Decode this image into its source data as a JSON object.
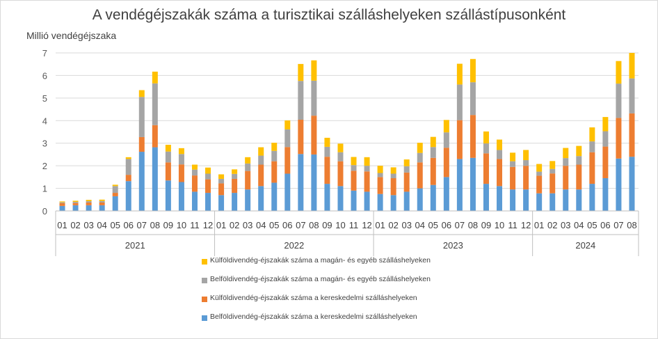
{
  "chart_data": {
    "type": "bar",
    "stacked": true,
    "title": "A vendégéjszakák száma a turisztikai szálláshelyeken szállástípusonként",
    "ylabel": "Millió vendégéjszaka",
    "ylim": [
      0,
      7
    ],
    "yticks": [
      0,
      1,
      2,
      3,
      4,
      5,
      6,
      7
    ],
    "grid": true,
    "legend_position": "bottom",
    "categories": [
      "01",
      "02",
      "03",
      "04",
      "05",
      "06",
      "07",
      "08",
      "09",
      "10",
      "11",
      "12",
      "01",
      "02",
      "03",
      "04",
      "05",
      "06",
      "07",
      "08",
      "09",
      "10",
      "11",
      "12",
      "01",
      "02",
      "03",
      "04",
      "05",
      "06",
      "07",
      "08",
      "09",
      "10",
      "11",
      "12",
      "01",
      "02",
      "03",
      "04",
      "05",
      "06",
      "07",
      "08"
    ],
    "years": [
      {
        "label": "2021",
        "count": 12
      },
      {
        "label": "2022",
        "count": 12
      },
      {
        "label": "2023",
        "count": 12
      },
      {
        "label": "2024",
        "count": 8
      }
    ],
    "series": [
      {
        "name": "Belföldivendég-éjszakák száma a kereskedelmi szálláshelyeken",
        "color": "#5b9bd5",
        "values": [
          0.22,
          0.25,
          0.25,
          0.25,
          0.65,
          1.32,
          2.62,
          2.82,
          1.35,
          1.28,
          0.85,
          0.8,
          0.7,
          0.8,
          0.95,
          1.1,
          1.25,
          1.65,
          2.52,
          2.5,
          1.2,
          1.1,
          0.9,
          0.85,
          0.75,
          0.7,
          0.85,
          1.0,
          1.15,
          1.5,
          2.3,
          2.35,
          1.2,
          1.1,
          0.95,
          0.95,
          0.78,
          0.78,
          0.95,
          0.95,
          1.2,
          1.45,
          2.32,
          2.4
        ]
      },
      {
        "name": "Külföldivendég-éjszakák száma a kereskedelmi szálláshelyeken",
        "color": "#ed7d31",
        "values": [
          0.12,
          0.1,
          0.12,
          0.12,
          0.15,
          0.28,
          0.65,
          0.98,
          0.8,
          0.78,
          0.72,
          0.6,
          0.52,
          0.62,
          0.82,
          0.95,
          0.95,
          1.18,
          1.52,
          1.72,
          1.2,
          1.1,
          0.88,
          0.9,
          0.75,
          0.75,
          0.85,
          1.15,
          1.2,
          1.3,
          1.72,
          1.9,
          1.35,
          1.2,
          1.0,
          1.05,
          0.78,
          0.88,
          1.05,
          1.1,
          1.4,
          1.4,
          1.8,
          1.92
        ]
      },
      {
        "name": "Belföldivendég-éjszakák száma a magán- és egyéb szálláshelyeken",
        "color": "#a5a5a5",
        "values": [
          0.04,
          0.05,
          0.06,
          0.07,
          0.3,
          0.7,
          1.78,
          1.85,
          0.48,
          0.46,
          0.26,
          0.25,
          0.2,
          0.22,
          0.33,
          0.4,
          0.46,
          0.78,
          1.72,
          1.55,
          0.44,
          0.4,
          0.25,
          0.25,
          0.18,
          0.2,
          0.28,
          0.42,
          0.48,
          0.68,
          1.58,
          1.45,
          0.44,
          0.4,
          0.25,
          0.25,
          0.18,
          0.2,
          0.34,
          0.38,
          0.48,
          0.68,
          1.52,
          1.55
        ]
      },
      {
        "name": "Külföldivendég-éjszakák száma a magán- és egyéb szálláshelyeken",
        "color": "#ffc000",
        "values": [
          0.04,
          0.05,
          0.06,
          0.06,
          0.06,
          0.08,
          0.3,
          0.52,
          0.3,
          0.26,
          0.22,
          0.27,
          0.2,
          0.2,
          0.28,
          0.37,
          0.36,
          0.4,
          0.75,
          0.9,
          0.4,
          0.38,
          0.36,
          0.38,
          0.32,
          0.28,
          0.3,
          0.45,
          0.45,
          0.55,
          0.92,
          1.03,
          0.53,
          0.46,
          0.38,
          0.45,
          0.34,
          0.35,
          0.45,
          0.45,
          0.62,
          0.63,
          1.0,
          1.13
        ]
      }
    ]
  }
}
